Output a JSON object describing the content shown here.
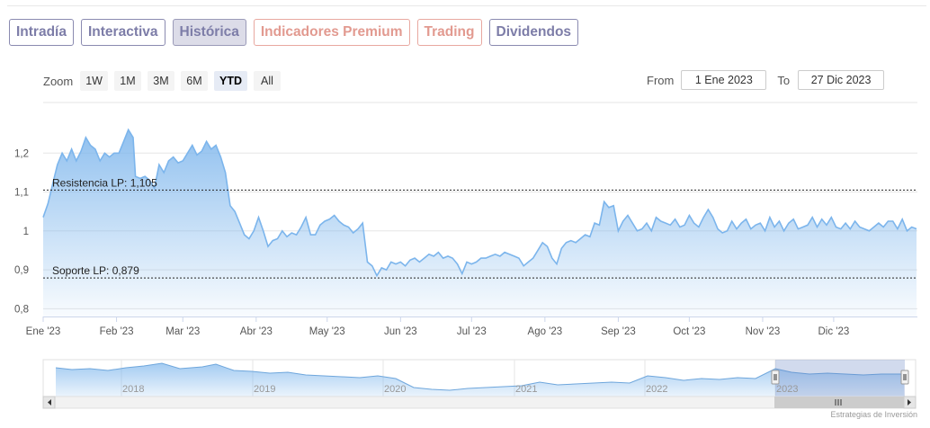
{
  "tabs": [
    {
      "label": "Intradía",
      "state": "normal"
    },
    {
      "label": "Interactiva",
      "state": "normal"
    },
    {
      "label": "Histórica",
      "state": "active"
    },
    {
      "label": "Indicadores Premium",
      "state": "premium"
    },
    {
      "label": "Trading",
      "state": "premium"
    },
    {
      "label": "Dividendos",
      "state": "normal"
    }
  ],
  "zoom": {
    "label": "Zoom",
    "buttons": [
      "1W",
      "1M",
      "3M",
      "6M",
      "YTD",
      "All"
    ],
    "active": "YTD"
  },
  "range": {
    "from_label": "From",
    "from_value": "1 Ene 2023",
    "to_label": "To",
    "to_value": "27 Dic 2023"
  },
  "chart_data": {
    "type": "area",
    "x_unit": "day of year 2023",
    "ylim": [
      0.78,
      1.33
    ],
    "y_ticks": [
      0.8,
      0.9,
      1.0,
      1.1,
      1.2
    ],
    "y_tick_labels": [
      "0,8",
      "0,9",
      "1",
      "1,1",
      "1,2"
    ],
    "x_ticks": [
      {
        "label": "Ene '23",
        "day": 1
      },
      {
        "label": "Feb '23",
        "day": 32
      },
      {
        "label": "Mar '23",
        "day": 60
      },
      {
        "label": "Abr '23",
        "day": 91
      },
      {
        "label": "May '23",
        "day": 121
      },
      {
        "label": "Jun '23",
        "day": 152
      },
      {
        "label": "Jul '23",
        "day": 182
      },
      {
        "label": "Ago '23",
        "day": 213
      },
      {
        "label": "Sep '23",
        "day": 244
      },
      {
        "label": "Oct '23",
        "day": 274
      },
      {
        "label": "Nov '23",
        "day": 305
      },
      {
        "label": "Dic '23",
        "day": 335
      }
    ],
    "grid": true,
    "series": [
      {
        "color": "#7cb5ec",
        "points": [
          [
            1,
            1.035
          ],
          [
            3,
            1.07
          ],
          [
            5,
            1.12
          ],
          [
            7,
            1.17
          ],
          [
            9,
            1.2
          ],
          [
            11,
            1.18
          ],
          [
            13,
            1.21
          ],
          [
            15,
            1.18
          ],
          [
            17,
            1.205
          ],
          [
            19,
            1.24
          ],
          [
            21,
            1.22
          ],
          [
            23,
            1.21
          ],
          [
            25,
            1.18
          ],
          [
            27,
            1.2
          ],
          [
            29,
            1.19
          ],
          [
            31,
            1.2
          ],
          [
            33,
            1.2
          ],
          [
            35,
            1.23
          ],
          [
            37,
            1.26
          ],
          [
            39,
            1.24
          ],
          [
            40,
            1.14
          ],
          [
            42,
            1.135
          ],
          [
            44,
            1.14
          ],
          [
            46,
            1.13
          ],
          [
            48,
            1.11
          ],
          [
            50,
            1.17
          ],
          [
            52,
            1.15
          ],
          [
            54,
            1.18
          ],
          [
            56,
            1.19
          ],
          [
            58,
            1.175
          ],
          [
            60,
            1.18
          ],
          [
            62,
            1.2
          ],
          [
            64,
            1.22
          ],
          [
            66,
            1.195
          ],
          [
            68,
            1.205
          ],
          [
            70,
            1.23
          ],
          [
            72,
            1.21
          ],
          [
            74,
            1.22
          ],
          [
            76,
            1.19
          ],
          [
            78,
            1.15
          ],
          [
            80,
            1.065
          ],
          [
            82,
            1.05
          ],
          [
            84,
            1.02
          ],
          [
            86,
            0.99
          ],
          [
            88,
            0.98
          ],
          [
            90,
            1.0
          ],
          [
            92,
            1.035
          ],
          [
            94,
            1.0
          ],
          [
            96,
            0.96
          ],
          [
            98,
            0.975
          ],
          [
            100,
            0.98
          ],
          [
            102,
            1.0
          ],
          [
            104,
            0.985
          ],
          [
            106,
            0.995
          ],
          [
            108,
            0.99
          ],
          [
            110,
            1.01
          ],
          [
            112,
            1.035
          ],
          [
            114,
            0.99
          ],
          [
            116,
            0.99
          ],
          [
            118,
            1.015
          ],
          [
            120,
            1.025
          ],
          [
            122,
            1.03
          ],
          [
            124,
            1.04
          ],
          [
            126,
            1.025
          ],
          [
            128,
            1.015
          ],
          [
            130,
            1.01
          ],
          [
            132,
            0.995
          ],
          [
            134,
            1.005
          ],
          [
            136,
            1.02
          ],
          [
            138,
            0.92
          ],
          [
            140,
            0.91
          ],
          [
            142,
            0.885
          ],
          [
            144,
            0.905
          ],
          [
            146,
            0.9
          ],
          [
            148,
            0.92
          ],
          [
            150,
            0.915
          ],
          [
            152,
            0.92
          ],
          [
            154,
            0.91
          ],
          [
            156,
            0.925
          ],
          [
            158,
            0.93
          ],
          [
            160,
            0.92
          ],
          [
            162,
            0.93
          ],
          [
            164,
            0.94
          ],
          [
            166,
            0.935
          ],
          [
            168,
            0.945
          ],
          [
            170,
            0.93
          ],
          [
            172,
            0.935
          ],
          [
            174,
            0.93
          ],
          [
            176,
            0.915
          ],
          [
            178,
            0.89
          ],
          [
            180,
            0.92
          ],
          [
            182,
            0.915
          ],
          [
            184,
            0.92
          ],
          [
            186,
            0.93
          ],
          [
            188,
            0.93
          ],
          [
            190,
            0.935
          ],
          [
            192,
            0.94
          ],
          [
            194,
            0.935
          ],
          [
            196,
            0.945
          ],
          [
            198,
            0.94
          ],
          [
            200,
            0.935
          ],
          [
            202,
            0.93
          ],
          [
            204,
            0.91
          ],
          [
            206,
            0.92
          ],
          [
            208,
            0.93
          ],
          [
            210,
            0.95
          ],
          [
            212,
            0.97
          ],
          [
            214,
            0.96
          ],
          [
            216,
            0.93
          ],
          [
            218,
            0.915
          ],
          [
            220,
            0.955
          ],
          [
            222,
            0.97
          ],
          [
            224,
            0.975
          ],
          [
            226,
            0.97
          ],
          [
            228,
            0.98
          ],
          [
            230,
            0.99
          ],
          [
            232,
            0.985
          ],
          [
            234,
            1.02
          ],
          [
            236,
            1.015
          ],
          [
            238,
            1.075
          ],
          [
            240,
            1.06
          ],
          [
            242,
            1.065
          ],
          [
            244,
            1.0
          ],
          [
            246,
            1.025
          ],
          [
            248,
            1.04
          ],
          [
            250,
            1.02
          ],
          [
            252,
            1.0
          ],
          [
            254,
            1.005
          ],
          [
            256,
            1.02
          ],
          [
            258,
            1.0
          ],
          [
            260,
            1.035
          ],
          [
            262,
            1.025
          ],
          [
            264,
            1.02
          ],
          [
            266,
            1.015
          ],
          [
            268,
            1.03
          ],
          [
            270,
            1.01
          ],
          [
            272,
            1.015
          ],
          [
            274,
            1.04
          ],
          [
            276,
            1.02
          ],
          [
            278,
            1.01
          ],
          [
            280,
            1.035
          ],
          [
            282,
            1.055
          ],
          [
            284,
            1.035
          ],
          [
            286,
            1.005
          ],
          [
            288,
            0.995
          ],
          [
            290,
            1.0
          ],
          [
            292,
            1.025
          ],
          [
            294,
            1.005
          ],
          [
            296,
            1.02
          ],
          [
            298,
            1.03
          ],
          [
            300,
            1.005
          ],
          [
            302,
            1.015
          ],
          [
            304,
            1.02
          ],
          [
            306,
            1.0
          ],
          [
            308,
            1.035
          ],
          [
            310,
            1.01
          ],
          [
            312,
            1.025
          ],
          [
            314,
            1.0
          ],
          [
            316,
            1.02
          ],
          [
            318,
            1.03
          ],
          [
            320,
            1.005
          ],
          [
            322,
            1.01
          ],
          [
            324,
            1.015
          ],
          [
            326,
            1.035
          ],
          [
            328,
            1.01
          ],
          [
            330,
            1.03
          ],
          [
            332,
            1.015
          ],
          [
            334,
            1.035
          ],
          [
            336,
            1.01
          ],
          [
            338,
            1.005
          ],
          [
            340,
            1.02
          ],
          [
            342,
            1.005
          ],
          [
            344,
            1.025
          ],
          [
            346,
            1.01
          ],
          [
            348,
            1.005
          ],
          [
            350,
            1.0
          ],
          [
            352,
            1.01
          ],
          [
            354,
            1.02
          ],
          [
            356,
            1.01
          ],
          [
            358,
            1.025
          ],
          [
            360,
            1.025
          ],
          [
            362,
            1.005
          ],
          [
            364,
            1.03
          ],
          [
            366,
            1.0
          ],
          [
            368,
            1.01
          ],
          [
            370,
            1.005
          ]
        ]
      }
    ],
    "annotations": [
      {
        "label": "Resistencia LP: 1,105",
        "y": 1.105
      },
      {
        "label": "Soporte LP: 0,879",
        "y": 0.879
      }
    ],
    "navigator": {
      "year_labels": [
        "2018",
        "2019",
        "2020",
        "2021",
        "2022",
        "2023"
      ],
      "selected": "2023"
    }
  },
  "credit": "Estrategias de Inversión"
}
